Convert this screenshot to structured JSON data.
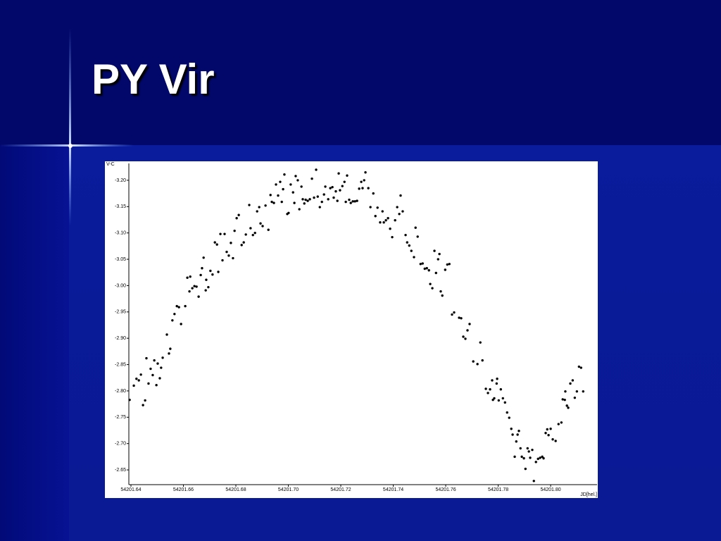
{
  "slide": {
    "title": "PY Vir"
  },
  "chart_data": {
    "type": "scatter",
    "x_label": "JD[hel.]",
    "y_label": "V-C",
    "color": "#000000",
    "xlim": [
      54201.6392,
      54201.8177
    ],
    "ylim": [
      -2.622,
      -3.232
    ],
    "xticks": [
      54201.64,
      54201.66,
      54201.68,
      {
        "value": 54201.7,
        "label": "54201.70"
      },
      54201.72,
      54201.74,
      54201.76,
      54201.78,
      {
        "value": 54201.8,
        "label": "54201.80"
      }
    ],
    "yticks": [
      {
        "value": -3.2,
        "label": "-3.20"
      },
      -3.15,
      {
        "value": -3.1,
        "label": "-3.10"
      },
      -3.05,
      {
        "value": -3.0,
        "label": "-3.00"
      },
      -2.95,
      {
        "value": -2.9,
        "label": "-2.90"
      },
      -2.85,
      {
        "value": -2.8,
        "label": "-2.80"
      },
      -2.75,
      {
        "value": -2.7,
        "label": "-2.70"
      },
      -2.65
    ],
    "x": [
      54201.6395,
      54201.6411,
      54201.6421,
      54201.643,
      54201.6438,
      54201.6446,
      54201.6454,
      54201.6459,
      54201.6467,
      54201.6475,
      54201.6483,
      54201.6489,
      54201.6497,
      54201.6502,
      54201.651,
      54201.6515,
      54201.6521,
      54201.6537,
      54201.6545,
      54201.655,
      54201.6558,
      54201.6566,
      54201.6575,
      54201.6583,
      54201.6591,
      54201.6607,
      54201.6615,
      54201.6626,
      54201.6623,
      54201.6634,
      54201.6642,
      54201.665,
      54201.6658,
      54201.6666,
      54201.6671,
      54201.6677,
      54201.6685,
      54201.6687,
      54201.6695,
      54201.6703,
      54201.6711,
      54201.672,
      54201.6728,
      54201.6733,
      54201.6741,
      54201.6749,
      54201.6757,
      54201.6765,
      54201.6773,
      54201.6781,
      54201.6789,
      54201.6795,
      54201.6803,
      54201.6811,
      54201.6822,
      54201.683,
      54201.6838,
      54201.6851,
      54201.6856,
      54201.6865,
      54201.6873,
      54201.6881,
      54201.6889,
      54201.6894,
      54201.6902,
      54201.6913,
      54201.6924,
      54201.6932,
      54201.6937,
      54201.6945,
      54201.6953,
      54201.6961,
      54201.6969,
      54201.6975,
      54201.698,
      54201.6985,
      54201.6996,
      54201.7001,
      54201.7009,
      54201.7018,
      54201.7023,
      54201.7028,
      54201.7036,
      54201.7042,
      54201.705,
      54201.7055,
      54201.7061,
      54201.7066,
      54201.7074,
      54201.7082,
      54201.709,
      54201.7098,
      54201.7106,
      54201.7112,
      54201.712,
      54201.7128,
      54201.7136,
      54201.7141,
      54201.7152,
      54201.716,
      54201.7168,
      54201.7173,
      54201.7181,
      54201.7187,
      54201.7192,
      54201.7197,
      54201.7206,
      54201.7214,
      54201.7219,
      54201.7224,
      54201.7232,
      54201.7238,
      54201.7246,
      54201.7254,
      54201.7262,
      54201.727,
      54201.7278,
      54201.7283,
      54201.7289,
      54201.7294,
      54201.7305,
      54201.7313,
      54201.7324,
      54201.7332,
      54201.734,
      54201.735,
      54201.7359,
      54201.7364,
      54201.7372,
      54201.738,
      54201.7388,
      54201.7396,
      54201.7407,
      54201.7415,
      54201.7423,
      54201.7428,
      54201.7436,
      54201.7447,
      54201.7453,
      54201.7461,
      54201.7469,
      54201.7479,
      54201.7485,
      54201.7493,
      54201.7504,
      54201.7512,
      54201.752,
      54201.7528,
      54201.7536,
      54201.7541,
      54201.7549,
      54201.7557,
      54201.7563,
      54201.7571,
      54201.7576,
      54201.7581,
      54201.7587,
      54201.7598,
      54201.7606,
      54201.7614,
      54201.7624,
      54201.7632,
      54201.7651,
      54201.7659,
      54201.7667,
      54201.7675,
      54201.7683,
      54201.7691,
      54201.7705,
      54201.7721,
      54201.7732,
      54201.774,
      54201.7753,
      54201.7761,
      54201.7769,
      54201.7777,
      54201.778,
      54201.7785,
      54201.7794,
      54201.7796,
      54201.7802,
      54201.781,
      54201.7818,
      54201.7826,
      54201.7834,
      54201.7842,
      54201.785,
      54201.7855,
      54201.7863,
      54201.7869,
      54201.7874,
      54201.7879,
      54201.7885,
      54201.789,
      54201.7898,
      54201.7904,
      54201.7912,
      54201.7917,
      54201.7922,
      54201.793,
      54201.7936,
      54201.7944,
      54201.7952,
      54201.796,
      54201.7968,
      54201.7973,
      54201.7981,
      54201.7987,
      54201.7992,
      54201.8,
      54201.8008,
      54201.8019,
      54201.803,
      54201.8041,
      54201.8046,
      54201.8054,
      54201.8056,
      54201.8062,
      54201.8067,
      54201.8075,
      54201.8084,
      54201.8092,
      54201.81,
      54201.8108,
      54201.8116,
      54201.8124
    ],
    "values": [
      -2.783,
      -2.81,
      -2.823,
      -2.82,
      -2.831,
      -2.773,
      -2.782,
      -2.862,
      -2.814,
      -2.842,
      -2.83,
      -2.858,
      -2.811,
      -2.852,
      -2.824,
      -2.844,
      -2.863,
      -2.907,
      -2.871,
      -2.88,
      -2.934,
      -2.946,
      -2.961,
      -2.959,
      -2.927,
      -2.961,
      -3.015,
      -3.017,
      -2.989,
      -2.995,
      -2.999,
      -2.998,
      -2.979,
      -3.02,
      -3.033,
      -3.053,
      -2.991,
      -3.011,
      -2.997,
      -3.028,
      -3.021,
      -3.082,
      -3.078,
      -3.026,
      -3.098,
      -3.048,
      -3.098,
      -3.064,
      -3.057,
      -3.081,
      -3.052,
      -3.104,
      -3.128,
      -3.134,
      -3.077,
      -3.082,
      -3.097,
      -3.153,
      -3.109,
      -3.096,
      -3.1,
      -3.141,
      -3.149,
      -3.118,
      -3.113,
      -3.152,
      -3.106,
      -3.172,
      -3.159,
      -3.157,
      -3.192,
      -3.171,
      -3.197,
      -3.159,
      -3.183,
      -3.211,
      -3.136,
      -3.138,
      -3.192,
      -3.177,
      -3.157,
      -3.208,
      -3.2,
      -3.145,
      -3.188,
      -3.164,
      -3.156,
      -3.163,
      -3.161,
      -3.164,
      -3.203,
      -3.167,
      -3.22,
      -3.169,
      -3.149,
      -3.159,
      -3.173,
      -3.188,
      -3.164,
      -3.185,
      -3.187,
      -3.167,
      -3.179,
      -3.161,
      -3.213,
      -3.181,
      -3.189,
      -3.197,
      -3.159,
      -3.209,
      -3.163,
      -3.157,
      -3.16,
      -3.16,
      -3.161,
      -3.184,
      -3.197,
      -3.185,
      -3.2,
      -3.215,
      -3.185,
      -3.149,
      -3.175,
      -3.132,
      -3.148,
      -3.12,
      -3.141,
      -3.12,
      -3.124,
      -3.128,
      -3.108,
      -3.092,
      -3.124,
      -3.149,
      -3.136,
      -3.171,
      -3.141,
      -3.096,
      -3.082,
      -3.076,
      -3.066,
      -3.054,
      -3.11,
      -3.093,
      -3.041,
      -3.042,
      -3.032,
      -3.033,
      -3.029,
      -3.003,
      -2.995,
      -3.066,
      -3.024,
      -3.05,
      -3.06,
      -2.989,
      -2.981,
      -3.03,
      -3.04,
      -3.041,
      -2.945,
      -2.949,
      -2.939,
      -2.938,
      -2.903,
      -2.899,
      -2.915,
      -2.927,
      -2.856,
      -2.851,
      -2.892,
      -2.858,
      -2.804,
      -2.796,
      -2.803,
      -2.82,
      -2.783,
      -2.786,
      -2.814,
      -2.823,
      -2.782,
      -2.803,
      -2.786,
      -2.778,
      -2.759,
      -2.749,
      -2.728,
      -2.717,
      -2.675,
      -2.704,
      -2.717,
      -2.724,
      -2.691,
      -2.675,
      -2.672,
      -2.652,
      -2.691,
      -2.685,
      -2.673,
      -2.688,
      -2.629,
      -2.665,
      -2.671,
      -2.673,
      -2.675,
      -2.672,
      -2.72,
      -2.727,
      -2.716,
      -2.728,
      -2.708,
      -2.705,
      -2.737,
      -2.74,
      -2.784,
      -2.783,
      -2.799,
      -2.772,
      -2.768,
      -2.814,
      -2.82,
      -2.787,
      -2.799,
      -2.846,
      -2.844,
      -2.799
    ]
  }
}
